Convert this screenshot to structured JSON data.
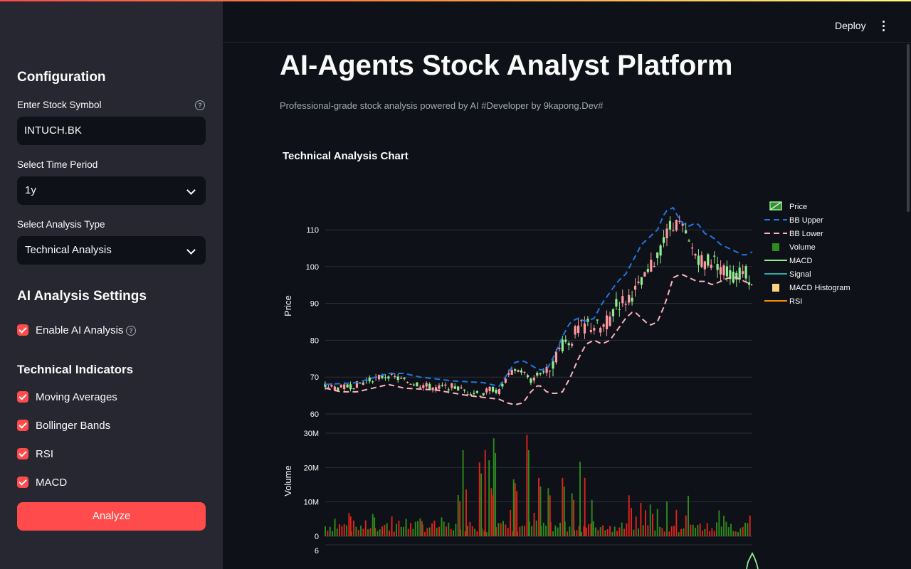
{
  "sidebar": {
    "configuration_title": "Configuration",
    "symbol_label": "Enter Stock Symbol",
    "symbol_value": "INTUCH.BK",
    "period_label": "Select Time Period",
    "period_value": "1y",
    "analysis_label": "Select Analysis Type",
    "analysis_value": "Technical Analysis",
    "ai_settings_title": "AI Analysis Settings",
    "enable_ai_label": "Enable AI Analysis",
    "indicators_title": "Technical Indicators",
    "indicators": [
      "Moving Averages",
      "Bollinger Bands",
      "RSI",
      "MACD"
    ],
    "analyze_button": "Analyze"
  },
  "header": {
    "deploy_label": "Deploy",
    "menu_icon": "kebab-menu-icon"
  },
  "main": {
    "title": "AI-Agents Stock Analyst Platform",
    "subtitle": "Professional-grade stock analysis powered by AI #Developer by 9kapong.Dev#",
    "chart_heading": "Technical Analysis Chart"
  },
  "colors": {
    "accent": "#ff4b4b",
    "up": "#90ee90",
    "down": "#ff9aa2",
    "bb_upper": "#1f77e4",
    "bb_lower": "#ffb3ba",
    "volume_up": "#2e8b1e",
    "volume_down": "#e0241b",
    "macd": "#90ee90",
    "signal": "#20b2aa",
    "macd_hist": "#ffd27f",
    "rsi": "#ff8c00"
  },
  "chart_data": {
    "type": "line",
    "legend": [
      "Price",
      "BB Upper",
      "BB Lower",
      "Volume",
      "MACD",
      "Signal",
      "MACD Histogram",
      "RSI"
    ],
    "legend_position": "right",
    "price_axis": {
      "label": "Price",
      "ticks": [
        60,
        70,
        80,
        90,
        100,
        110
      ],
      "range": [
        60,
        116
      ]
    },
    "volume_axis": {
      "label": "Volume",
      "ticks": [
        "0",
        "10M",
        "20M",
        "30M"
      ],
      "range": [
        0,
        30000000
      ]
    },
    "lower_axis_ticks": [
      "6"
    ],
    "price_key_points": [
      [
        0,
        67.5
      ],
      [
        20,
        67
      ],
      [
        40,
        68
      ],
      [
        60,
        69.5
      ],
      [
        80,
        70.5
      ],
      [
        100,
        69
      ],
      [
        120,
        68
      ],
      [
        140,
        67
      ],
      [
        160,
        67.5
      ],
      [
        180,
        66
      ],
      [
        200,
        65.5
      ],
      [
        210,
        67
      ],
      [
        220,
        66
      ],
      [
        230,
        70
      ],
      [
        240,
        72
      ],
      [
        250,
        71.5
      ],
      [
        260,
        69
      ],
      [
        270,
        71
      ],
      [
        280,
        72
      ],
      [
        290,
        75
      ],
      [
        300,
        79
      ],
      [
        310,
        80
      ],
      [
        320,
        83
      ],
      [
        330,
        84
      ],
      [
        340,
        84
      ],
      [
        350,
        83
      ],
      [
        360,
        86
      ],
      [
        370,
        90
      ],
      [
        380,
        91
      ],
      [
        390,
        93
      ],
      [
        400,
        95
      ],
      [
        410,
        99
      ],
      [
        420,
        103
      ],
      [
        430,
        108
      ],
      [
        440,
        112
      ],
      [
        450,
        111
      ],
      [
        460,
        106
      ],
      [
        470,
        103
      ],
      [
        480,
        101
      ],
      [
        490,
        102
      ],
      [
        500,
        100
      ],
      [
        510,
        98
      ],
      [
        520,
        97
      ],
      [
        530,
        99
      ],
      [
        540,
        96
      ]
    ],
    "bb_upper_key_points": [
      [
        0,
        68
      ],
      [
        40,
        68.5
      ],
      [
        80,
        71
      ],
      [
        100,
        71
      ],
      [
        120,
        70
      ],
      [
        160,
        69
      ],
      [
        200,
        68.5
      ],
      [
        220,
        67.5
      ],
      [
        240,
        74
      ],
      [
        250,
        74.5
      ],
      [
        270,
        72
      ],
      [
        280,
        72
      ],
      [
        290,
        76
      ],
      [
        300,
        81
      ],
      [
        310,
        85
      ],
      [
        320,
        86
      ],
      [
        330,
        85
      ],
      [
        340,
        86
      ],
      [
        350,
        90
      ],
      [
        360,
        93
      ],
      [
        370,
        96
      ],
      [
        380,
        98
      ],
      [
        390,
        102
      ],
      [
        400,
        106
      ],
      [
        420,
        110
      ],
      [
        430,
        115
      ],
      [
        440,
        116
      ],
      [
        450,
        112
      ],
      [
        460,
        111
      ],
      [
        470,
        112
      ],
      [
        480,
        109
      ],
      [
        490,
        108
      ],
      [
        500,
        106
      ],
      [
        510,
        105
      ],
      [
        520,
        104
      ],
      [
        530,
        103
      ],
      [
        540,
        104
      ]
    ],
    "bb_lower_key_points": [
      [
        0,
        67
      ],
      [
        20,
        66
      ],
      [
        40,
        66
      ],
      [
        60,
        67
      ],
      [
        80,
        68
      ],
      [
        100,
        67
      ],
      [
        140,
        66.5
      ],
      [
        180,
        65
      ],
      [
        200,
        64.5
      ],
      [
        220,
        64
      ],
      [
        230,
        63
      ],
      [
        240,
        62.5
      ],
      [
        250,
        63
      ],
      [
        260,
        66
      ],
      [
        270,
        68
      ],
      [
        280,
        66
      ],
      [
        290,
        65.5
      ],
      [
        300,
        66
      ],
      [
        310,
        70
      ],
      [
        320,
        75
      ],
      [
        330,
        79
      ],
      [
        340,
        80
      ],
      [
        350,
        79
      ],
      [
        360,
        80
      ],
      [
        370,
        83
      ],
      [
        380,
        86
      ],
      [
        390,
        88
      ],
      [
        400,
        86
      ],
      [
        410,
        84
      ],
      [
        420,
        85
      ],
      [
        430,
        90
      ],
      [
        440,
        97
      ],
      [
        450,
        98
      ],
      [
        460,
        97
      ],
      [
        470,
        96
      ],
      [
        480,
        96
      ],
      [
        490,
        95
      ],
      [
        500,
        96
      ],
      [
        510,
        97
      ],
      [
        520,
        97
      ],
      [
        530,
        96
      ],
      [
        540,
        95
      ]
    ],
    "volume_highlights": [
      [
        10,
        6000000
      ],
      [
        30,
        6800000
      ],
      [
        60,
        6500000
      ],
      [
        82,
        6800000
      ],
      [
        100,
        6000000
      ],
      [
        120,
        5200000
      ],
      [
        145,
        6500000
      ],
      [
        168,
        12000000
      ],
      [
        172,
        29500000
      ],
      [
        176,
        16000000
      ],
      [
        195,
        21500000
      ],
      [
        200,
        29500000
      ],
      [
        205,
        26000000
      ],
      [
        210,
        14000000
      ],
      [
        213,
        28500000
      ],
      [
        232,
        9000000
      ],
      [
        236,
        19500000
      ],
      [
        240,
        15500000
      ],
      [
        255,
        29500000
      ],
      [
        262,
        8000000
      ],
      [
        270,
        17000000
      ],
      [
        282,
        14000000
      ],
      [
        300,
        17000000
      ],
      [
        312,
        12500000
      ],
      [
        320,
        25500000
      ],
      [
        326,
        20000000
      ],
      [
        335,
        12500000
      ]
    ],
    "macd_peak": [
      540,
      5.5
    ]
  }
}
